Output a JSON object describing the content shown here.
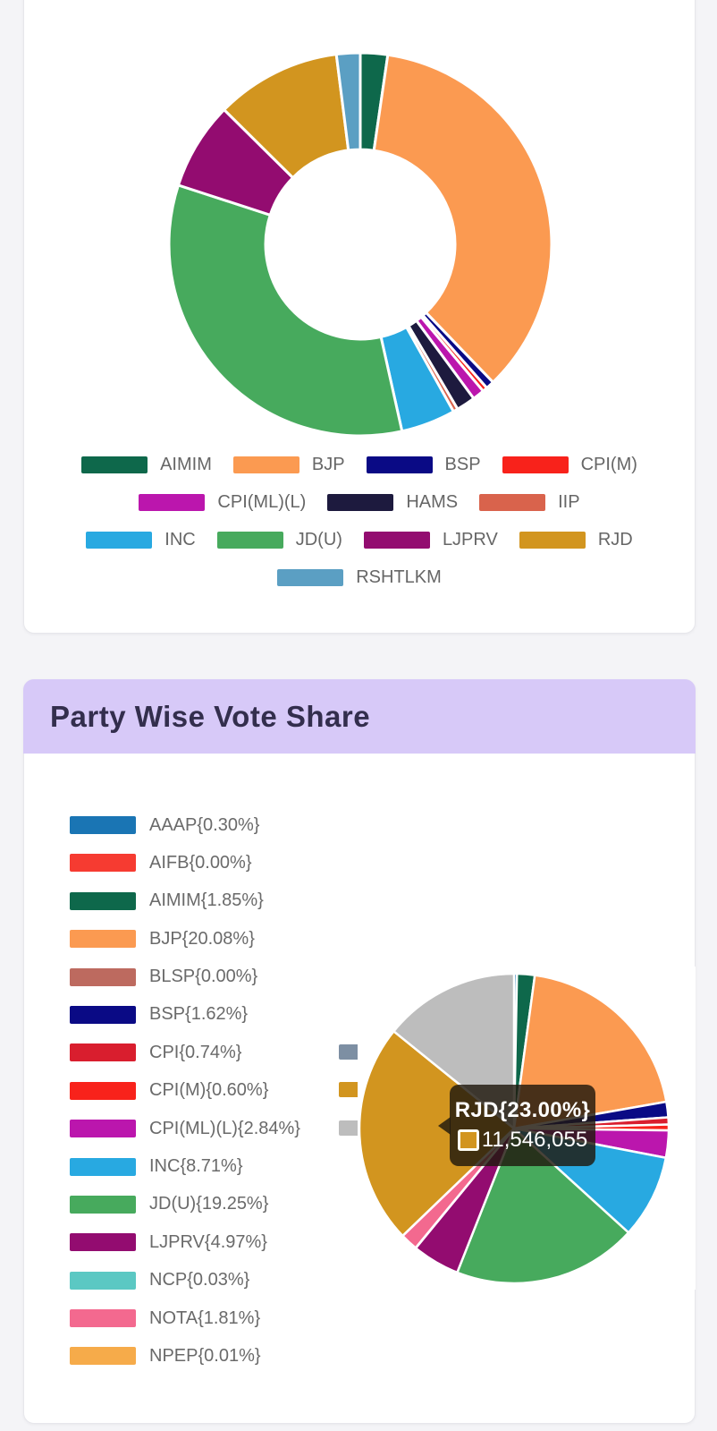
{
  "page": {
    "background": "#f4f4f7"
  },
  "card1": {
    "legend_rows": [
      [
        {
          "label": "AIMIM",
          "color": "#0e684b"
        },
        {
          "label": "BJP",
          "color": "#fb9a51"
        },
        {
          "label": "BSP",
          "color": "#0a0a85"
        },
        {
          "label": "CPI(M)",
          "color": "#f8221b"
        }
      ],
      [
        {
          "label": "CPI(ML)(L)",
          "color": "#bb16ad"
        },
        {
          "label": "HAMS",
          "color": "#1d1a3e"
        },
        {
          "label": "IIP",
          "color": "#d9634c"
        }
      ],
      [
        {
          "label": "INC",
          "color": "#28a9e1"
        },
        {
          "label": "JD(U)",
          "color": "#47aa5d"
        },
        {
          "label": "LJPRV",
          "color": "#930c70"
        },
        {
          "label": "RJD",
          "color": "#d2951f"
        }
      ],
      [
        {
          "label": "RSHTLKM",
          "color": "#5b9fc3"
        }
      ]
    ]
  },
  "card2": {
    "title": "Party Wise Vote Share",
    "header_bg": "#d7c9f8",
    "legend": [
      {
        "label": "AAAP{0.30%}",
        "color": "#1a75b4"
      },
      {
        "label": "AIFB{0.00%}",
        "color": "#f63b31"
      },
      {
        "label": "AIMIM{1.85%}",
        "color": "#0e684b"
      },
      {
        "label": "BJP{20.08%}",
        "color": "#fb9a51"
      },
      {
        "label": "BLSP{0.00%}",
        "color": "#bd6a5f"
      },
      {
        "label": "BSP{1.62%}",
        "color": "#0a0a85"
      },
      {
        "label": "CPI{0.74%}",
        "color": "#d91e2e"
      },
      {
        "label": "CPI(M){0.60%}",
        "color": "#f8221b"
      },
      {
        "label": "CPI(ML)(L){2.84%}",
        "color": "#bb16ad"
      },
      {
        "label": "INC{8.71%}",
        "color": "#28a9e1"
      },
      {
        "label": "JD(U){19.25%}",
        "color": "#47aa5d"
      },
      {
        "label": "LJPRV{4.97%}",
        "color": "#930c70"
      },
      {
        "label": "NCP{0.03%}",
        "color": "#5bc8c3"
      },
      {
        "label": "NOTA{1.81%}",
        "color": "#f3698f"
      },
      {
        "label": "NPEP{0.01%}",
        "color": "#f6ab4a"
      }
    ],
    "hidden_legend_swatch_colors": [
      "#7d8fa3",
      "#d2951f",
      "#bdbdbd"
    ],
    "tooltip": {
      "title": "RJD{23.00%}",
      "value": "11,546,055",
      "swatch_color": "#d2951f"
    }
  },
  "chart_data": [
    {
      "type": "pie",
      "variant": "donut",
      "title": "",
      "legend_position": "bottom",
      "categories": [
        "AIMIM",
        "BJP",
        "BSP",
        "CPI(M)",
        "CPI(ML)(L)",
        "HAMS",
        "IIP",
        "INC",
        "JD(U)",
        "LJPRV",
        "RJD",
        "RSHTLKM"
      ],
      "values": [
        2.3,
        35.5,
        0.7,
        0.4,
        1.0,
        1.6,
        0.4,
        4.6,
        33.5,
        7.4,
        10.6,
        2.0
      ],
      "values_note": "percent of circle, estimated from arc angles (no numeric labels shown)",
      "colors": [
        "#0e684b",
        "#fb9a51",
        "#0a0a85",
        "#f8221b",
        "#bb16ad",
        "#1d1a3e",
        "#d9634c",
        "#28a9e1",
        "#47aa5d",
        "#930c70",
        "#d2951f",
        "#5b9fc3"
      ],
      "start_angle_deg": 0,
      "inner_radius_ratio": 0.495
    },
    {
      "type": "pie",
      "variant": "pie",
      "title": "Party Wise Vote Share",
      "legend_position": "left",
      "categories": [
        "AAAP",
        "AIFB",
        "AIMIM",
        "BJP",
        "BLSP",
        "BSP",
        "CPI",
        "CPI(M)",
        "CPI(ML)(L)",
        "INC",
        "JD(U)",
        "LJPRV",
        "NCP",
        "NOTA",
        "NPEP",
        "RJD",
        ""
      ],
      "values": [
        0.3,
        0.0,
        1.85,
        20.08,
        0.0,
        1.62,
        0.74,
        0.6,
        2.84,
        8.71,
        19.25,
        4.97,
        0.03,
        1.81,
        0.01,
        23.0,
        14.19
      ],
      "values_unit": "percent vote share",
      "values_note": "last slice is unlabeled (gray); its value is the remainder of 100%",
      "colors": [
        "#1a75b4",
        "#f63b31",
        "#0e684b",
        "#fb9a51",
        "#bd6a5f",
        "#0a0a85",
        "#d91e2e",
        "#f8221b",
        "#bb16ad",
        "#28a9e1",
        "#47aa5d",
        "#930c70",
        "#5bc8c3",
        "#f3698f",
        "#f6ab4a",
        "#d2951f",
        "#bdbdbd"
      ],
      "start_angle_deg": 0,
      "tooltip": {
        "label": "RJD",
        "percent": "23.00%",
        "votes": "11,546,055"
      }
    }
  ]
}
